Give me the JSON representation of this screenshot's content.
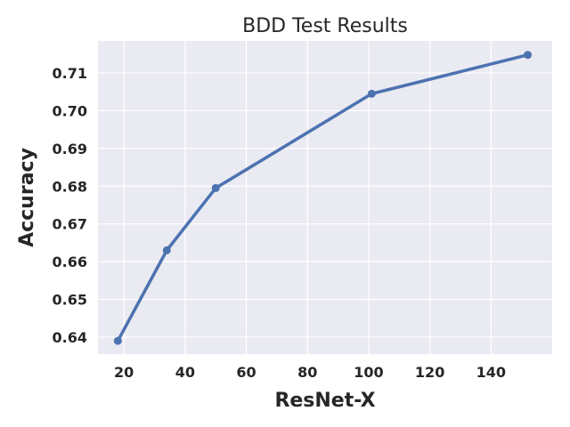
{
  "chart_data": {
    "type": "line",
    "title": "BDD Test Results",
    "xlabel": "ResNet-X",
    "ylabel": "Accuracy",
    "x": [
      18,
      34,
      50,
      101,
      152
    ],
    "series": [
      {
        "values": [
          0.639,
          0.663,
          0.6795,
          0.7045,
          0.7148
        ]
      }
    ],
    "xlim": [
      11.5,
      160
    ],
    "ylim": [
      0.6355,
      0.7185
    ],
    "xticks": [
      20,
      40,
      60,
      80,
      100,
      120,
      140
    ],
    "yticks": [
      0.64,
      0.65,
      0.66,
      0.67,
      0.68,
      0.69,
      0.7,
      0.71
    ],
    "ytick_labels": [
      "0.64",
      "0.65",
      "0.66",
      "0.67",
      "0.68",
      "0.69",
      "0.70",
      "0.71"
    ],
    "grid": true,
    "colors": {
      "background": "#eaeaf2",
      "line": "#4c72b0"
    }
  }
}
